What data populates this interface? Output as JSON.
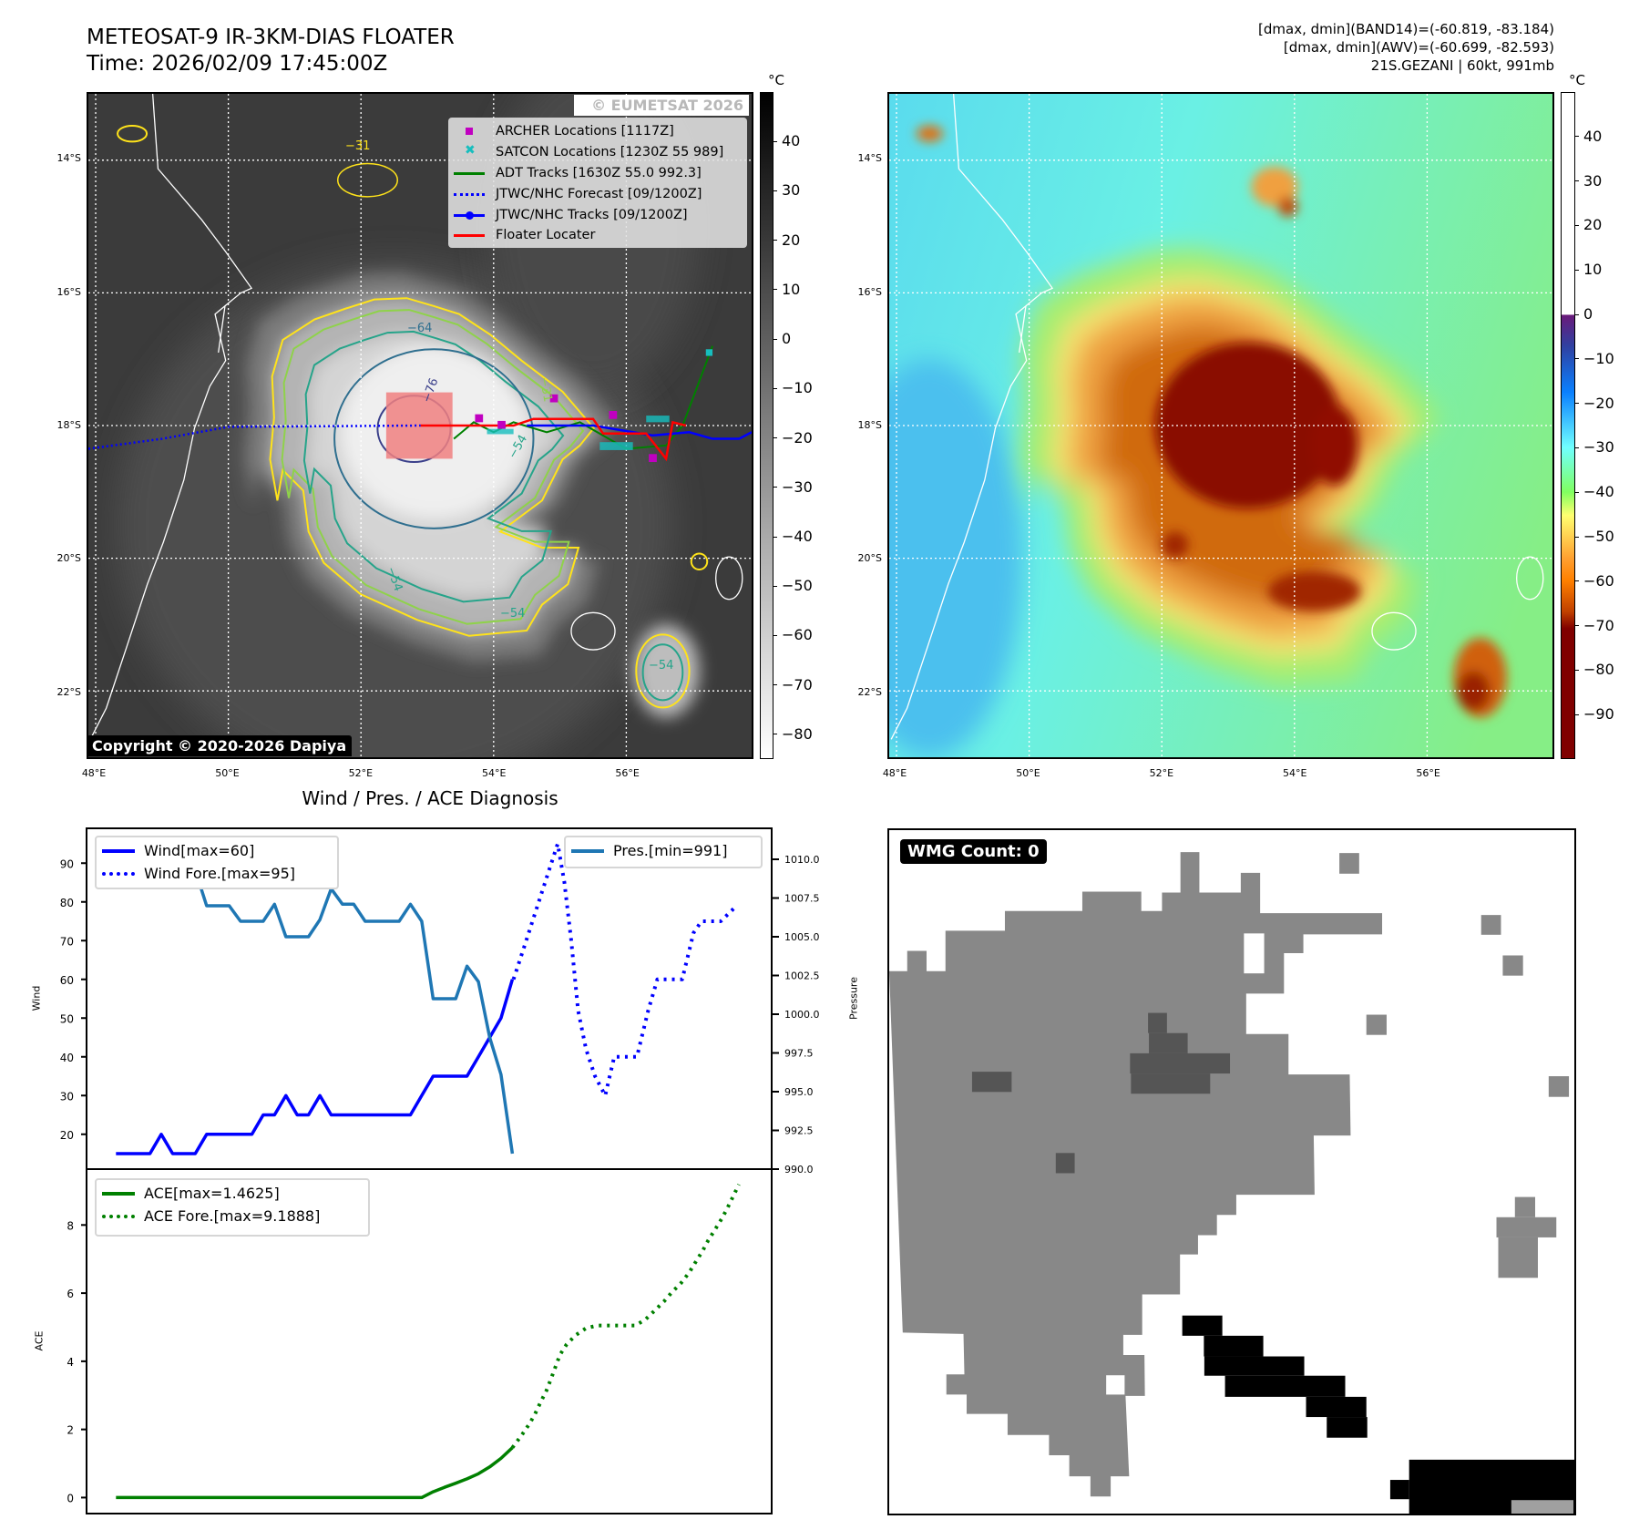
{
  "header": {
    "title": "METEOSAT-9 IR-3KM-DIAS FLOATER",
    "time": "Time: 2026/02/09 17:45:00Z",
    "stats": [
      "[dmax, dmin](BAND14)=(-60.819, -83.184)",
      "[dmax, dmin](AWV)=(-60.699, -82.593)",
      "21S.GEZANI | 60kt, 991mb"
    ]
  },
  "maps": {
    "lat_labels": [
      "14°S",
      "16°S",
      "18°S",
      "20°S",
      "22°S"
    ],
    "lon_labels": [
      "48°E",
      "50°E",
      "52°E",
      "54°E",
      "56°E"
    ],
    "watermark": "© EUMETSAT 2026",
    "copyright": "Copyright © 2020-2026 Dapiya",
    "contour_labels": [
      "−31",
      "−64",
      "−76",
      "−54",
      "−54",
      "−54",
      "−54",
      "−31"
    ]
  },
  "legend": [
    {
      "label": "ARCHER Locations [1117Z]",
      "icon": "square-marker",
      "color": "#c000c0"
    },
    {
      "label": "SATCON Locations [1230Z 55 989]",
      "icon": "x-marker",
      "color": "#17bebe"
    },
    {
      "label": "ADT Tracks [1630Z 55.0 992.3]",
      "icon": "line",
      "color": "#008000"
    },
    {
      "label": "JTWC/NHC Forecast [09/1200Z]",
      "icon": "dotted-line",
      "color": "#0000ff"
    },
    {
      "label": "JTWC/NHC Tracks [09/1200Z]",
      "icon": "line-dot",
      "color": "#0000ff"
    },
    {
      "label": "Floater Locater",
      "icon": "line",
      "color": "#ff0000"
    }
  ],
  "colorbars": {
    "unit": "°C",
    "ir": {
      "range": [
        -85,
        50
      ],
      "ticks": [
        40,
        30,
        20,
        10,
        0,
        -10,
        -20,
        -30,
        -40,
        -50,
        -60,
        -70,
        -80
      ],
      "labels": [
        "40",
        "30",
        "20",
        "10",
        "0",
        "−10",
        "−20",
        "−30",
        "−40",
        "−50",
        "−60",
        "−70",
        "−80"
      ]
    },
    "awv": {
      "range": [
        -100,
        50
      ],
      "ticks": [
        40,
        30,
        20,
        10,
        0,
        -10,
        -20,
        -30,
        -40,
        -50,
        -60,
        -70,
        -80,
        -90
      ],
      "labels": [
        "40",
        "30",
        "20",
        "10",
        "0",
        "−10",
        "−20",
        "−30",
        "−40",
        "−50",
        "−60",
        "−70",
        "−80",
        "−90"
      ]
    }
  },
  "diagnosis": {
    "title": "Wind / Pres. / ACE Diagnosis"
  },
  "wmg": {
    "label": "WMG Count: 0"
  },
  "chart_data": [
    {
      "type": "line",
      "title": "Wind / Pres. / ACE Diagnosis",
      "ylabel": "Wind",
      "y2label": "Pressure",
      "xlim": [
        -2.6,
        57.9
      ],
      "ylim": [
        11,
        99
      ],
      "y2lim": [
        990,
        1012
      ],
      "yticks": [
        20,
        30,
        40,
        50,
        60,
        70,
        80,
        90
      ],
      "y2ticks": [
        990.0,
        992.5,
        995.0,
        997.5,
        1000.0,
        1002.5,
        1005.0,
        1007.5,
        1010.0
      ],
      "y2ticklabels": [
        "990.0",
        "992.5",
        "995.0",
        "997.5",
        "1000.0",
        "1002.5",
        "1005.0",
        "1007.5",
        "1010.0"
      ],
      "series": [
        {
          "name": "Wind[max=60]",
          "axis": "left",
          "style": "solid",
          "color": "#0000ff",
          "x": [
            0,
            1,
            2,
            3,
            4,
            5,
            6,
            7,
            8,
            9,
            10,
            11,
            12,
            13,
            14,
            15,
            16,
            17,
            18,
            19,
            20,
            21,
            22,
            23,
            24,
            25,
            26,
            27,
            28,
            29,
            30,
            31,
            32,
            33,
            34,
            35
          ],
          "values": [
            15,
            15,
            15,
            15,
            20,
            15,
            15,
            15,
            20,
            20,
            20,
            20,
            20,
            25,
            25,
            30,
            25,
            25,
            30,
            25,
            25,
            25,
            25,
            25,
            25,
            25,
            25,
            30,
            35,
            35,
            35,
            35,
            40,
            45,
            50,
            60
          ]
        },
        {
          "name": "Wind Fore.[max=95]",
          "axis": "left",
          "style": "dotted",
          "color": "#0000ff",
          "x": [
            35.1,
            36,
            37,
            38,
            39,
            39.6,
            40.2,
            40.8,
            41.5,
            42.3,
            43.2,
            44,
            46,
            47,
            47.8,
            50,
            51,
            51.7,
            53.4,
            54.8
          ],
          "values": [
            60,
            68,
            77,
            86,
            95,
            85,
            70,
            52,
            42,
            35,
            30,
            40,
            40,
            52,
            60,
            60,
            72,
            75,
            75,
            79
          ]
        },
        {
          "name": "Pres.[min=991]",
          "axis": "right",
          "style": "solid",
          "color": "#1f77b4",
          "x": [
            0,
            1,
            2,
            3,
            4,
            5,
            6,
            7,
            8,
            9,
            10,
            11,
            12,
            13,
            14,
            15,
            16,
            17,
            18,
            19,
            20,
            21,
            22,
            23,
            24,
            25,
            26,
            27,
            28,
            29,
            30,
            31,
            32,
            33,
            34,
            35
          ],
          "values": [
            1009.1,
            1009.1,
            1011.1,
            1011.1,
            1011.1,
            1011.1,
            1011.1,
            1009.3,
            1007.0,
            1007.0,
            1007.0,
            1006.0,
            1006.0,
            1006.0,
            1007.1,
            1005.0,
            1005.0,
            1005.0,
            1006.1,
            1008.1,
            1007.1,
            1007.1,
            1006.0,
            1006.0,
            1006.0,
            1006.0,
            1007.1,
            1006.0,
            1001.0,
            1001.0,
            1001.0,
            1003.1,
            1002.1,
            998.5,
            996.1,
            991.0
          ]
        }
      ]
    },
    {
      "type": "line",
      "ylabel": "ACE",
      "xlim": [
        -2.6,
        57.9
      ],
      "ylim": [
        -0.47,
        9.64
      ],
      "yticks": [
        0,
        2,
        4,
        6,
        8
      ],
      "series": [
        {
          "name": "ACE[max=1.4625]",
          "style": "solid",
          "color": "#008000",
          "x": [
            0,
            5,
            10,
            15,
            20,
            25,
            27,
            28,
            29,
            30,
            31,
            32,
            33,
            34,
            35
          ],
          "values": [
            0,
            0,
            0,
            0,
            0,
            0,
            0,
            0.17,
            0.3,
            0.42,
            0.55,
            0.7,
            0.9,
            1.15,
            1.4625
          ]
        },
        {
          "name": "ACE Fore.[max=9.1888]",
          "style": "dotted",
          "color": "#008000",
          "x": [
            35,
            35.8,
            36.5,
            37.0,
            37.5,
            38.0,
            38.4,
            38.8,
            39.2,
            39.8,
            40.6,
            41.5,
            42.5,
            45.9,
            46.8,
            47.6,
            48.4,
            49.1,
            49.9,
            50.6,
            51.2,
            51.8,
            52.3,
            52.9,
            53.5,
            54.0,
            54.5,
            55.0
          ],
          "values": [
            1.4625,
            1.82,
            2.16,
            2.45,
            2.8,
            3.13,
            3.47,
            3.83,
            4.19,
            4.5,
            4.77,
            4.97,
            5.05,
            5.05,
            5.24,
            5.5,
            5.76,
            6.03,
            6.3,
            6.6,
            6.92,
            7.24,
            7.55,
            7.87,
            8.19,
            8.5,
            8.84,
            9.1888
          ]
        }
      ]
    }
  ]
}
